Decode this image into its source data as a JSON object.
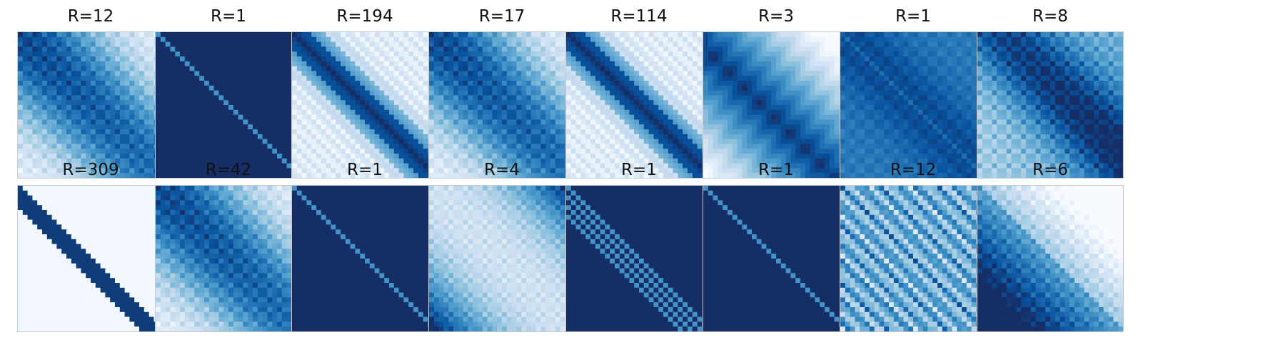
{
  "figure": {
    "background": "#ffffff",
    "colormap": "Blues",
    "colormap_light": "#f7fbff",
    "colormap_dark": "#08306b",
    "frame_color": "#c4ccd6"
  },
  "chart_data": [
    {
      "type": "heatmap",
      "title": "R=12",
      "pattern": "banded-periodic"
    },
    {
      "type": "heatmap",
      "title": "R=1",
      "pattern": "uniform-dark-with-diagonal"
    },
    {
      "type": "heatmap",
      "title": "R=194",
      "pattern": "narrow-diagonal-band"
    },
    {
      "type": "heatmap",
      "title": "R=17",
      "pattern": "banded-periodic"
    },
    {
      "type": "heatmap",
      "title": "R=114",
      "pattern": "narrow-diagonal-band"
    },
    {
      "type": "heatmap",
      "title": "R=3",
      "pattern": "broad-diagonal-gradient"
    },
    {
      "type": "heatmap",
      "title": "R=1",
      "pattern": "mid-blue-with-diagonal"
    },
    {
      "type": "heatmap",
      "title": "R=8",
      "pattern": "upper-right-gradient"
    },
    {
      "type": "heatmap",
      "title": "R=309",
      "pattern": "sparse-diagonal-lines"
    },
    {
      "type": "heatmap",
      "title": "R=42",
      "pattern": "banded-periodic"
    },
    {
      "type": "heatmap",
      "title": "R=1",
      "pattern": "uniform-dark-with-diagonal"
    },
    {
      "type": "heatmap",
      "title": "R=4",
      "pattern": "light-diagonal-dark-corners"
    },
    {
      "type": "heatmap",
      "title": "R=1",
      "pattern": "uniform-dark-with-multi-diagonals"
    },
    {
      "type": "heatmap",
      "title": "R=1",
      "pattern": "uniform-dark-with-diagonal"
    },
    {
      "type": "heatmap",
      "title": "R=12",
      "pattern": "checker-diagonal-stripes"
    },
    {
      "type": "heatmap",
      "title": "R=6",
      "pattern": "lower-left-dark-diagonal"
    }
  ]
}
